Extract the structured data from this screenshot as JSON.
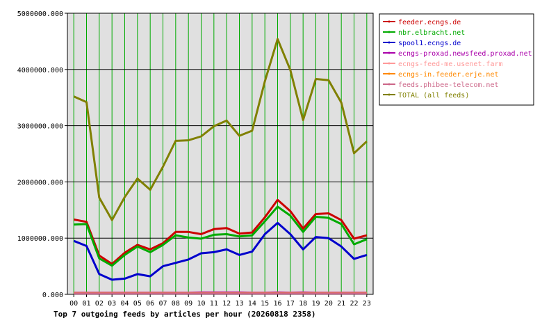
{
  "chart_data": {
    "type": "line",
    "title": "Top 7 outgoing feeds by articles per hour (20260818 2358)",
    "xlabel": "",
    "ylabel": "",
    "grid": true,
    "legend_position": "right",
    "categories": [
      "00",
      "01",
      "02",
      "03",
      "04",
      "05",
      "06",
      "07",
      "08",
      "09",
      "10",
      "11",
      "12",
      "13",
      "14",
      "15",
      "16",
      "17",
      "18",
      "19",
      "20",
      "21",
      "22",
      "23"
    ],
    "ylim": [
      0,
      5000000
    ],
    "yticks": [
      0,
      1000000,
      2000000,
      3000000,
      4000000,
      5000000
    ],
    "ytick_labels": [
      "0.000",
      "1000000.000",
      "2000000.000",
      "3000000.000",
      "4000000.000",
      "5000000.000"
    ],
    "plot_background": "#e0e0e0",
    "series": [
      {
        "name": "feeder.ecngs.de",
        "color": "#cc0000",
        "values": [
          1330000,
          1290000,
          690000,
          540000,
          740000,
          880000,
          800000,
          910000,
          1110000,
          1110000,
          1070000,
          1160000,
          1180000,
          1080000,
          1100000,
          1370000,
          1680000,
          1480000,
          1170000,
          1430000,
          1440000,
          1320000,
          990000,
          1050000
        ]
      },
      {
        "name": "nbr.elbracht.net",
        "color": "#00aa00",
        "values": [
          1240000,
          1250000,
          640000,
          510000,
          700000,
          850000,
          750000,
          880000,
          1050000,
          1010000,
          990000,
          1060000,
          1070000,
          1030000,
          1050000,
          1300000,
          1560000,
          1400000,
          1110000,
          1380000,
          1360000,
          1250000,
          890000,
          980000
        ]
      },
      {
        "name": "spool1.ecngs.de",
        "color": "#0000cc",
        "values": [
          950000,
          860000,
          360000,
          260000,
          280000,
          360000,
          320000,
          500000,
          560000,
          620000,
          730000,
          750000,
          800000,
          700000,
          760000,
          1070000,
          1270000,
          1070000,
          800000,
          1020000,
          1000000,
          850000,
          630000,
          700000
        ]
      },
      {
        "name": "ecngs-proxad.newsfeed.proxad.net",
        "color": "#aa00aa",
        "values": [
          30000,
          30000,
          30000,
          30000,
          30000,
          30000,
          30000,
          30000,
          30000,
          30000,
          35000,
          35000,
          35000,
          35000,
          30000,
          30000,
          35000,
          30000,
          35000,
          30000,
          30000,
          30000,
          30000,
          30000
        ]
      },
      {
        "name": "ecngs-feed-me.usenet.farm",
        "color": "#ff9999",
        "values": [
          25000,
          25000,
          25000,
          25000,
          25000,
          25000,
          25000,
          25000,
          25000,
          25000,
          25000,
          25000,
          25000,
          25000,
          25000,
          25000,
          25000,
          25000,
          25000,
          25000,
          25000,
          25000,
          25000,
          25000
        ]
      },
      {
        "name": "ecngs-in.feeder.erje.net",
        "color": "#ff8800",
        "values": [
          20000,
          20000,
          20000,
          20000,
          20000,
          20000,
          20000,
          20000,
          20000,
          20000,
          20000,
          20000,
          20000,
          20000,
          20000,
          20000,
          20000,
          20000,
          20000,
          20000,
          20000,
          20000,
          20000,
          20000
        ]
      },
      {
        "name": "feeds.phibee-telecom.net",
        "color": "#cc6688",
        "values": [
          15000,
          15000,
          15000,
          15000,
          15000,
          15000,
          15000,
          15000,
          15000,
          15000,
          15000,
          15000,
          15000,
          15000,
          15000,
          15000,
          15000,
          15000,
          15000,
          15000,
          15000,
          15000,
          15000,
          15000
        ]
      },
      {
        "name": "TOTAL (all feeds)",
        "color": "#808000",
        "values": [
          3520000,
          3420000,
          1720000,
          1320000,
          1730000,
          2060000,
          1860000,
          2270000,
          2730000,
          2740000,
          2810000,
          2990000,
          3090000,
          2820000,
          2910000,
          3790000,
          4540000,
          3990000,
          3100000,
          3830000,
          3810000,
          3410000,
          2510000,
          2720000
        ]
      }
    ]
  }
}
